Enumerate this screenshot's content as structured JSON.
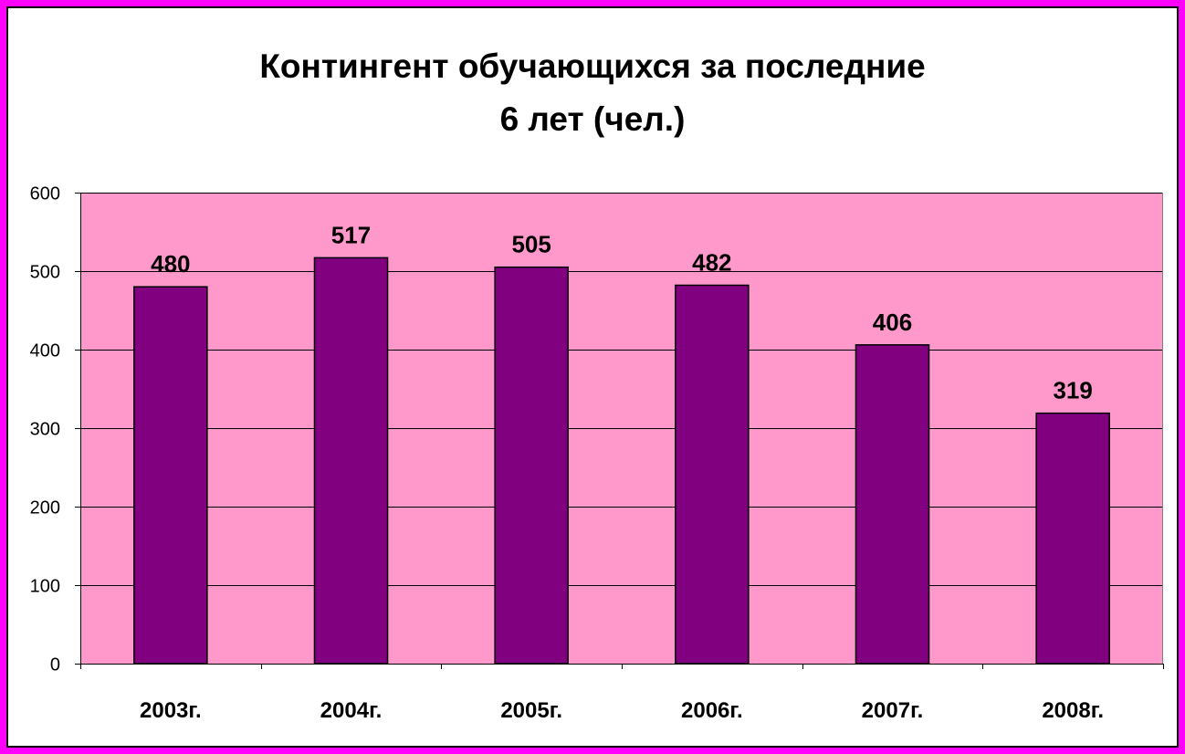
{
  "chart_data": {
    "type": "bar",
    "title_lines": [
      "Контингент обучающихся за последние",
      "6 лет (чел.)"
    ],
    "xlabel": "",
    "ylabel": "",
    "categories": [
      "2003г.",
      "2004г.",
      "2005г.",
      "2006г.",
      "2007г.",
      "2008г."
    ],
    "values": [
      480,
      517,
      505,
      482,
      406,
      319
    ],
    "ylim": [
      0,
      600
    ],
    "yticks": [
      0,
      100,
      200,
      300,
      400,
      500,
      600
    ],
    "grid": true,
    "legend": "none",
    "data_labels": true,
    "colors": {
      "bar": "#800080",
      "plot_background": "#ff99cc",
      "frame": "#ff00ff",
      "gridline": "#000000"
    }
  }
}
